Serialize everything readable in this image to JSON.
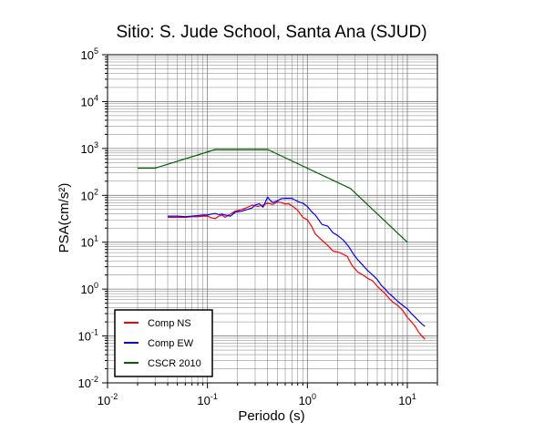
{
  "chart_data": {
    "type": "line",
    "title": "Sitio: S. Jude School, Santa Ana (SJUD)",
    "xlabel": "Periodo (s)",
    "ylabel": "PSA(cm/s²)",
    "x_scale": "log",
    "y_scale": "log",
    "xlim": [
      0.01,
      20
    ],
    "ylim": [
      0.01,
      100000
    ],
    "grid": true,
    "legend_position": "bottom-left",
    "x_ticks": [
      {
        "value": 0.01,
        "base": "10",
        "exp": "-2"
      },
      {
        "value": 0.1,
        "base": "10",
        "exp": "-1"
      },
      {
        "value": 1,
        "base": "10",
        "exp": "0"
      },
      {
        "value": 10,
        "base": "10",
        "exp": "1"
      }
    ],
    "y_ticks": [
      {
        "value": 0.01,
        "base": "10",
        "exp": "-2"
      },
      {
        "value": 0.1,
        "base": "10",
        "exp": "-1"
      },
      {
        "value": 1,
        "base": "10",
        "exp": "0"
      },
      {
        "value": 10,
        "base": "10",
        "exp": "1"
      },
      {
        "value": 100,
        "base": "10",
        "exp": "2"
      },
      {
        "value": 1000,
        "base": "10",
        "exp": "3"
      },
      {
        "value": 10000,
        "base": "10",
        "exp": "4"
      },
      {
        "value": 100000,
        "base": "10",
        "exp": "5"
      }
    ],
    "series": [
      {
        "name": "Comp NS",
        "color": "#ff0000",
        "points": [
          [
            0.04,
            34
          ],
          [
            0.05,
            34
          ],
          [
            0.06,
            34
          ],
          [
            0.07,
            35
          ],
          [
            0.08,
            35
          ],
          [
            0.09,
            36
          ],
          [
            0.1,
            36
          ],
          [
            0.11,
            33
          ],
          [
            0.12,
            32
          ],
          [
            0.13,
            36
          ],
          [
            0.14,
            38
          ],
          [
            0.15,
            34
          ],
          [
            0.17,
            40
          ],
          [
            0.19,
            46
          ],
          [
            0.22,
            50
          ],
          [
            0.25,
            55
          ],
          [
            0.28,
            62
          ],
          [
            0.32,
            58
          ],
          [
            0.36,
            62
          ],
          [
            0.4,
            68
          ],
          [
            0.45,
            64
          ],
          [
            0.5,
            72
          ],
          [
            0.55,
            70
          ],
          [
            0.6,
            65
          ],
          [
            0.65,
            66
          ],
          [
            0.7,
            60
          ],
          [
            0.8,
            48
          ],
          [
            0.9,
            34
          ],
          [
            1.0,
            30
          ],
          [
            1.1,
            22
          ],
          [
            1.2,
            15
          ],
          [
            1.4,
            11
          ],
          [
            1.6,
            8.5
          ],
          [
            1.8,
            6.5
          ],
          [
            2.1,
            6.0
          ],
          [
            2.5,
            5.0
          ],
          [
            2.8,
            3.2
          ],
          [
            3.2,
            2.3
          ],
          [
            3.6,
            2.0
          ],
          [
            4.0,
            1.7
          ],
          [
            4.5,
            1.5
          ],
          [
            5.0,
            1.15
          ],
          [
            5.5,
            0.95
          ],
          [
            6.0,
            0.8
          ],
          [
            6.5,
            0.65
          ],
          [
            7.0,
            0.55
          ],
          [
            8.0,
            0.45
          ],
          [
            9.0,
            0.35
          ],
          [
            10.0,
            0.25
          ],
          [
            11.0,
            0.2
          ],
          [
            12.0,
            0.16
          ],
          [
            13.0,
            0.12
          ],
          [
            14.0,
            0.1
          ],
          [
            15.0,
            0.085
          ]
        ]
      },
      {
        "name": "Comp EW",
        "color": "#0000ff",
        "points": [
          [
            0.04,
            36
          ],
          [
            0.05,
            36
          ],
          [
            0.06,
            35
          ],
          [
            0.07,
            36
          ],
          [
            0.08,
            37
          ],
          [
            0.09,
            38
          ],
          [
            0.1,
            38
          ],
          [
            0.11,
            40
          ],
          [
            0.12,
            41
          ],
          [
            0.13,
            39
          ],
          [
            0.14,
            40
          ],
          [
            0.15,
            38
          ],
          [
            0.17,
            36
          ],
          [
            0.19,
            44
          ],
          [
            0.22,
            46
          ],
          [
            0.25,
            50
          ],
          [
            0.28,
            54
          ],
          [
            0.3,
            62
          ],
          [
            0.33,
            66
          ],
          [
            0.36,
            56
          ],
          [
            0.38,
            72
          ],
          [
            0.4,
            92
          ],
          [
            0.42,
            80
          ],
          [
            0.45,
            70
          ],
          [
            0.5,
            76
          ],
          [
            0.55,
            85
          ],
          [
            0.6,
            86
          ],
          [
            0.7,
            86
          ],
          [
            0.8,
            74
          ],
          [
            0.9,
            68
          ],
          [
            1.0,
            58
          ],
          [
            1.1,
            45
          ],
          [
            1.2,
            38
          ],
          [
            1.3,
            30
          ],
          [
            1.4,
            24
          ],
          [
            1.6,
            22
          ],
          [
            1.8,
            16
          ],
          [
            2.0,
            14
          ],
          [
            2.3,
            11
          ],
          [
            2.6,
            8.0
          ],
          [
            2.9,
            5.5
          ],
          [
            3.2,
            4.2
          ],
          [
            3.6,
            3.2
          ],
          [
            4.0,
            2.5
          ],
          [
            4.5,
            2.0
          ],
          [
            5.0,
            1.6
          ],
          [
            5.5,
            1.2
          ],
          [
            6.0,
            1.0
          ],
          [
            6.5,
            0.82
          ],
          [
            7.0,
            0.72
          ],
          [
            8.0,
            0.55
          ],
          [
            9.0,
            0.45
          ],
          [
            10.0,
            0.38
          ],
          [
            11.0,
            0.3
          ],
          [
            12.0,
            0.25
          ],
          [
            13.0,
            0.21
          ],
          [
            14.0,
            0.18
          ],
          [
            15.0,
            0.16
          ]
        ]
      },
      {
        "name": "CSCR 2010",
        "color": "#006400",
        "points": [
          [
            0.02,
            380
          ],
          [
            0.03,
            380
          ],
          [
            0.12,
            950
          ],
          [
            0.4,
            950
          ],
          [
            2.7,
            140
          ],
          [
            10.0,
            10
          ]
        ]
      }
    ]
  }
}
